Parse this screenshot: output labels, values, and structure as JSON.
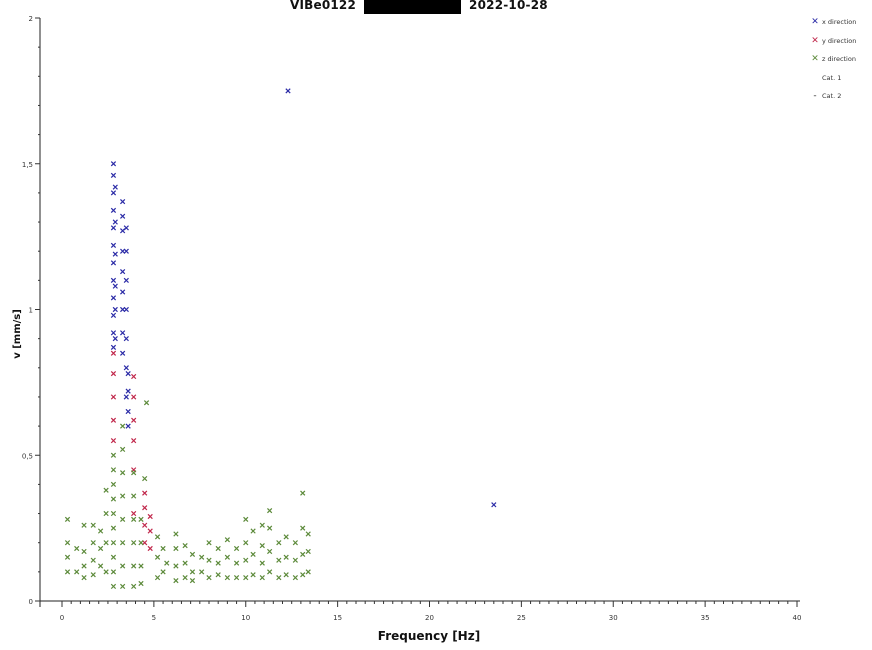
{
  "header": {
    "title_left": "VIBe0122",
    "title_right": "2022-10-28"
  },
  "legend": {
    "items": [
      {
        "symbol": "✕",
        "label": "x direction",
        "color": "#2a2aa6"
      },
      {
        "symbol": "✕",
        "label": "y direction",
        "color": "#c0264a"
      },
      {
        "symbol": "✕",
        "label": "z direction",
        "color": "#5c8a3a"
      },
      {
        "symbol": "",
        "label": "Cat. 1",
        "color": "#555555"
      },
      {
        "symbol": "-",
        "label": "Cat. 2",
        "color": "#555555"
      }
    ]
  },
  "chart_data": {
    "type": "scatter",
    "title": "",
    "xlabel": "Frequency [Hz]",
    "ylabel": "v [mm/s]",
    "xlim": [
      0,
      40
    ],
    "ylim": [
      0,
      2
    ],
    "xticks": [
      0,
      5,
      10,
      15,
      20,
      25,
      30,
      35,
      40
    ],
    "xtick_labels": [
      "0",
      "5",
      "10",
      "15",
      "20",
      "25",
      "30",
      "35",
      "40"
    ],
    "yticks": [
      0,
      0.5,
      1,
      1.5,
      2
    ],
    "ytick_labels": [
      "0",
      "0,5",
      "1",
      "1,5",
      "2"
    ],
    "grid": false,
    "legend_position": "top-right",
    "series": [
      {
        "name": "x direction",
        "color": "#2a2aa6",
        "points": [
          [
            2.8,
            0.87
          ],
          [
            2.8,
            0.92
          ],
          [
            2.8,
            0.98
          ],
          [
            2.8,
            1.04
          ],
          [
            2.8,
            1.1
          ],
          [
            2.8,
            1.16
          ],
          [
            2.8,
            1.22
          ],
          [
            2.8,
            1.28
          ],
          [
            2.8,
            1.34
          ],
          [
            2.8,
            1.4
          ],
          [
            2.8,
            1.46
          ],
          [
            2.8,
            1.5
          ],
          [
            2.9,
            0.9
          ],
          [
            2.9,
            1.0
          ],
          [
            2.9,
            1.08
          ],
          [
            2.9,
            1.19
          ],
          [
            2.9,
            1.3
          ],
          [
            2.9,
            1.42
          ],
          [
            3.3,
            0.85
          ],
          [
            3.3,
            0.92
          ],
          [
            3.3,
            1.0
          ],
          [
            3.3,
            1.06
          ],
          [
            3.3,
            1.13
          ],
          [
            3.3,
            1.2
          ],
          [
            3.3,
            1.27
          ],
          [
            3.3,
            1.32
          ],
          [
            3.3,
            1.37
          ],
          [
            3.5,
            0.7
          ],
          [
            3.5,
            0.8
          ],
          [
            3.5,
            0.9
          ],
          [
            3.5,
            1.0
          ],
          [
            3.5,
            1.1
          ],
          [
            3.5,
            1.2
          ],
          [
            3.5,
            1.28
          ],
          [
            3.6,
            0.6
          ],
          [
            3.6,
            0.65
          ],
          [
            3.6,
            0.72
          ],
          [
            3.6,
            0.78
          ],
          [
            12.3,
            1.75
          ],
          [
            23.5,
            0.33
          ]
        ]
      },
      {
        "name": "y direction",
        "color": "#c0264a",
        "points": [
          [
            2.8,
            0.55
          ],
          [
            2.8,
            0.62
          ],
          [
            2.8,
            0.7
          ],
          [
            2.8,
            0.78
          ],
          [
            2.8,
            0.85
          ],
          [
            3.9,
            0.3
          ],
          [
            3.9,
            0.45
          ],
          [
            3.9,
            0.55
          ],
          [
            3.9,
            0.62
          ],
          [
            3.9,
            0.7
          ],
          [
            3.9,
            0.77
          ],
          [
            4.5,
            0.2
          ],
          [
            4.5,
            0.26
          ],
          [
            4.5,
            0.32
          ],
          [
            4.5,
            0.37
          ],
          [
            4.8,
            0.18
          ],
          [
            4.8,
            0.24
          ],
          [
            4.8,
            0.29
          ]
        ]
      },
      {
        "name": "z direction",
        "color": "#5c8a3a",
        "points": [
          [
            0.3,
            0.1
          ],
          [
            0.3,
            0.15
          ],
          [
            0.3,
            0.2
          ],
          [
            0.3,
            0.28
          ],
          [
            0.8,
            0.1
          ],
          [
            0.8,
            0.18
          ],
          [
            1.2,
            0.08
          ],
          [
            1.2,
            0.12
          ],
          [
            1.2,
            0.17
          ],
          [
            1.2,
            0.26
          ],
          [
            1.7,
            0.09
          ],
          [
            1.7,
            0.14
          ],
          [
            1.7,
            0.2
          ],
          [
            1.7,
            0.26
          ],
          [
            2.1,
            0.12
          ],
          [
            2.1,
            0.18
          ],
          [
            2.1,
            0.24
          ],
          [
            2.4,
            0.1
          ],
          [
            2.4,
            0.2
          ],
          [
            2.4,
            0.3
          ],
          [
            2.4,
            0.38
          ],
          [
            2.8,
            0.05
          ],
          [
            2.8,
            0.1
          ],
          [
            2.8,
            0.15
          ],
          [
            2.8,
            0.2
          ],
          [
            2.8,
            0.25
          ],
          [
            2.8,
            0.3
          ],
          [
            2.8,
            0.35
          ],
          [
            2.8,
            0.4
          ],
          [
            2.8,
            0.45
          ],
          [
            2.8,
            0.5
          ],
          [
            3.3,
            0.05
          ],
          [
            3.3,
            0.12
          ],
          [
            3.3,
            0.2
          ],
          [
            3.3,
            0.28
          ],
          [
            3.3,
            0.36
          ],
          [
            3.3,
            0.44
          ],
          [
            3.3,
            0.52
          ],
          [
            3.3,
            0.6
          ],
          [
            3.9,
            0.05
          ],
          [
            3.9,
            0.12
          ],
          [
            3.9,
            0.2
          ],
          [
            3.9,
            0.28
          ],
          [
            3.9,
            0.36
          ],
          [
            3.9,
            0.44
          ],
          [
            4.3,
            0.06
          ],
          [
            4.3,
            0.12
          ],
          [
            4.3,
            0.2
          ],
          [
            4.3,
            0.28
          ],
          [
            4.5,
            0.42
          ],
          [
            4.6,
            0.68
          ],
          [
            5.2,
            0.08
          ],
          [
            5.2,
            0.15
          ],
          [
            5.2,
            0.22
          ],
          [
            5.5,
            0.1
          ],
          [
            5.5,
            0.18
          ],
          [
            5.7,
            0.13
          ],
          [
            6.2,
            0.07
          ],
          [
            6.2,
            0.12
          ],
          [
            6.2,
            0.18
          ],
          [
            6.2,
            0.23
          ],
          [
            6.7,
            0.08
          ],
          [
            6.7,
            0.13
          ],
          [
            6.7,
            0.19
          ],
          [
            7.1,
            0.07
          ],
          [
            7.1,
            0.1
          ],
          [
            7.1,
            0.16
          ],
          [
            7.6,
            0.1
          ],
          [
            7.6,
            0.15
          ],
          [
            8.0,
            0.08
          ],
          [
            8.0,
            0.14
          ],
          [
            8.0,
            0.2
          ],
          [
            8.5,
            0.09
          ],
          [
            8.5,
            0.13
          ],
          [
            8.5,
            0.18
          ],
          [
            9.0,
            0.08
          ],
          [
            9.0,
            0.15
          ],
          [
            9.0,
            0.21
          ],
          [
            9.5,
            0.08
          ],
          [
            9.5,
            0.13
          ],
          [
            9.5,
            0.18
          ],
          [
            10.0,
            0.08
          ],
          [
            10.0,
            0.14
          ],
          [
            10.0,
            0.2
          ],
          [
            10.0,
            0.28
          ],
          [
            10.4,
            0.09
          ],
          [
            10.4,
            0.16
          ],
          [
            10.4,
            0.24
          ],
          [
            10.9,
            0.08
          ],
          [
            10.9,
            0.13
          ],
          [
            10.9,
            0.19
          ],
          [
            10.9,
            0.26
          ],
          [
            11.3,
            0.1
          ],
          [
            11.3,
            0.17
          ],
          [
            11.3,
            0.25
          ],
          [
            11.3,
            0.31
          ],
          [
            11.8,
            0.08
          ],
          [
            11.8,
            0.14
          ],
          [
            11.8,
            0.2
          ],
          [
            12.2,
            0.09
          ],
          [
            12.2,
            0.15
          ],
          [
            12.2,
            0.22
          ],
          [
            12.7,
            0.08
          ],
          [
            12.7,
            0.14
          ],
          [
            12.7,
            0.2
          ],
          [
            13.1,
            0.09
          ],
          [
            13.1,
            0.16
          ],
          [
            13.1,
            0.25
          ],
          [
            13.1,
            0.37
          ],
          [
            13.4,
            0.1
          ],
          [
            13.4,
            0.17
          ],
          [
            13.4,
            0.23
          ]
        ]
      }
    ]
  }
}
